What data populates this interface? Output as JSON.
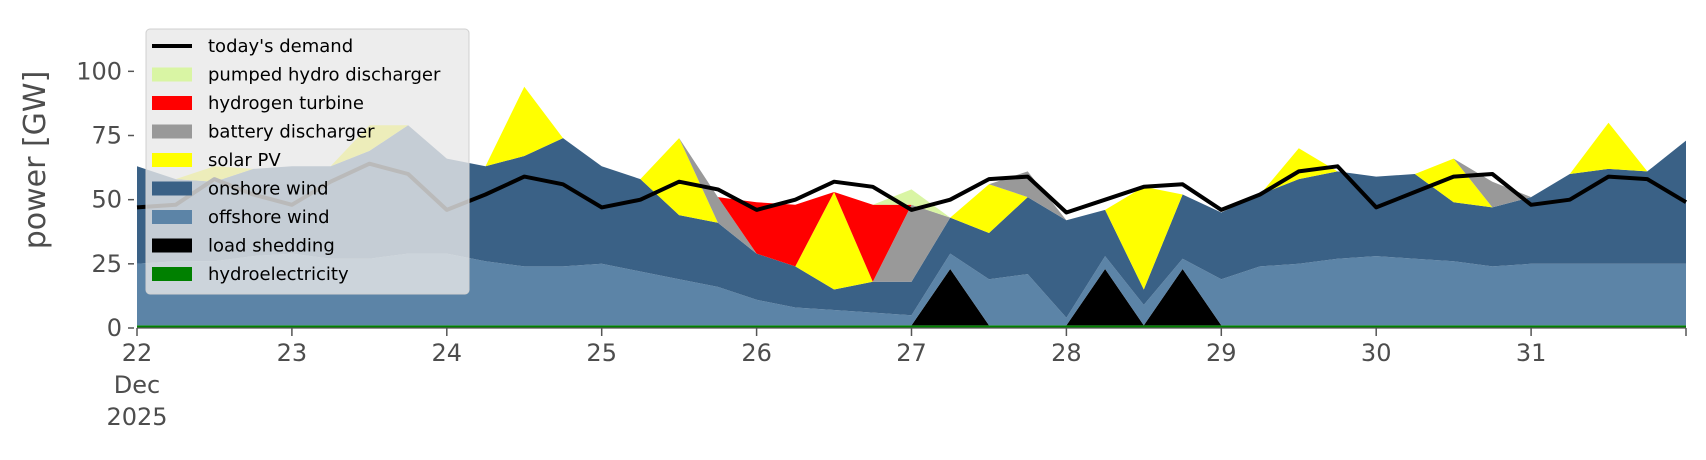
{
  "chart_data": {
    "type": "area",
    "title": "",
    "ylabel": "power [GW]",
    "ylim": [
      0,
      120
    ],
    "xlim": [
      22,
      32
    ],
    "yticks": [
      0,
      25,
      50,
      75,
      100
    ],
    "xticks": [
      {
        "value": 22,
        "lines": [
          "22",
          "Dec",
          "2025"
        ]
      },
      {
        "value": 23,
        "lines": [
          "23"
        ]
      },
      {
        "value": 24,
        "lines": [
          "24"
        ]
      },
      {
        "value": 25,
        "lines": [
          "25"
        ]
      },
      {
        "value": 26,
        "lines": [
          "26"
        ]
      },
      {
        "value": 27,
        "lines": [
          "27"
        ]
      },
      {
        "value": 28,
        "lines": [
          "28"
        ]
      },
      {
        "value": 29,
        "lines": [
          "29"
        ]
      },
      {
        "value": 30,
        "lines": [
          "30"
        ]
      },
      {
        "value": 31,
        "lines": [
          "31"
        ]
      }
    ],
    "grid": false,
    "legend_position": "top-left",
    "legend": [
      {
        "label": "today's demand",
        "kind": "line",
        "color": "#000000"
      },
      {
        "label": "pumped hydro discharger",
        "kind": "patch",
        "color": "#d9f5a4"
      },
      {
        "label": "hydrogen turbine",
        "kind": "patch",
        "color": "#ff0000"
      },
      {
        "label": "battery discharger",
        "kind": "patch",
        "color": "#999999"
      },
      {
        "label": "solar PV",
        "kind": "patch",
        "color": "#ffff00"
      },
      {
        "label": "onshore wind",
        "kind": "patch",
        "color": "#3a6186"
      },
      {
        "label": "offshore wind",
        "kind": "patch",
        "color": "#5c84a7"
      },
      {
        "label": "load shedding",
        "kind": "patch",
        "color": "#000000"
      },
      {
        "label": "hydroelectricity",
        "kind": "patch",
        "color": "#008000"
      }
    ],
    "x": [
      22.0,
      22.25,
      22.5,
      22.75,
      23.0,
      23.25,
      23.5,
      23.75,
      24.0,
      24.25,
      24.5,
      24.75,
      25.0,
      25.25,
      25.5,
      25.75,
      26.0,
      26.25,
      26.5,
      26.75,
      27.0,
      27.25,
      27.5,
      27.75,
      28.0,
      28.25,
      28.5,
      28.75,
      29.0,
      29.25,
      29.5,
      29.75,
      30.0,
      30.25,
      30.5,
      30.75,
      31.0,
      31.25,
      31.5,
      31.75,
      32.0
    ],
    "series": [
      {
        "name": "hydroelectricity",
        "color": "#008000",
        "values": [
          1,
          1,
          1,
          1,
          1,
          1,
          1,
          1,
          1,
          1,
          1,
          1,
          1,
          1,
          1,
          1,
          1,
          1,
          1,
          1,
          1,
          1,
          1,
          1,
          1,
          1,
          1,
          1,
          1,
          1,
          1,
          1,
          1,
          1,
          1,
          1,
          1,
          1,
          1,
          1,
          1
        ]
      },
      {
        "name": "load shedding",
        "color": "#000000",
        "values": [
          0,
          0,
          0,
          0,
          0,
          0,
          0,
          0,
          0,
          0,
          0,
          0,
          0,
          0,
          0,
          0,
          0,
          0,
          0,
          0,
          0,
          22,
          0,
          0,
          0,
          22,
          0,
          22,
          0,
          0,
          0,
          0,
          0,
          0,
          0,
          0,
          0,
          0,
          0,
          0,
          0
        ]
      },
      {
        "name": "offshore wind",
        "color": "#5c84a7",
        "values": [
          24,
          25,
          25,
          27,
          28,
          26,
          26,
          28,
          28,
          25,
          23,
          23,
          24,
          21,
          18,
          15,
          10,
          7,
          6,
          5,
          4,
          6,
          18,
          20,
          3,
          5,
          8,
          4,
          18,
          23,
          24,
          26,
          27,
          26,
          25,
          23,
          24,
          24,
          24,
          24,
          24
        ]
      },
      {
        "name": "onshore wind",
        "color": "#3a6186",
        "values": [
          38,
          32,
          31,
          34,
          34,
          36,
          42,
          50,
          37,
          37,
          43,
          50,
          38,
          36,
          25,
          25,
          18,
          16,
          8,
          12,
          13,
          14,
          18,
          30,
          38,
          18,
          6,
          25,
          26,
          28,
          33,
          34,
          31,
          33,
          23,
          23,
          26,
          35,
          37,
          36,
          48
        ]
      },
      {
        "name": "solar PV",
        "color": "#ffff00",
        "values": [
          0,
          0,
          6,
          0,
          0,
          0,
          10,
          0,
          0,
          0,
          27,
          0,
          0,
          0,
          30,
          0,
          0,
          0,
          38,
          0,
          0,
          0,
          19,
          0,
          0,
          0,
          40,
          0,
          0,
          0,
          12,
          0,
          0,
          0,
          17,
          0,
          0,
          0,
          18,
          0,
          0
        ]
      },
      {
        "name": "battery discharger",
        "color": "#999999",
        "values": [
          0,
          0,
          0,
          0,
          0,
          0,
          0,
          0,
          0,
          0,
          0,
          0,
          0,
          0,
          0,
          10,
          0,
          0,
          0,
          0,
          30,
          0,
          0,
          10,
          0,
          0,
          0,
          0,
          0,
          0,
          0,
          0,
          0,
          0,
          0,
          10,
          0,
          0,
          0,
          0,
          0
        ]
      },
      {
        "name": "hydrogen turbine",
        "color": "#ff0000",
        "values": [
          0,
          0,
          0,
          0,
          0,
          0,
          0,
          0,
          0,
          0,
          0,
          0,
          0,
          0,
          0,
          0,
          20,
          24,
          0,
          30,
          0,
          0,
          0,
          0,
          0,
          0,
          0,
          0,
          0,
          0,
          0,
          0,
          0,
          0,
          0,
          0,
          0,
          0,
          0,
          0,
          0
        ]
      },
      {
        "name": "pumped hydro discharger",
        "color": "#d9f5a4",
        "values": [
          0,
          0,
          0,
          0,
          0,
          0,
          0,
          0,
          0,
          0,
          0,
          0,
          0,
          0,
          0,
          0,
          0,
          0,
          0,
          0,
          6,
          0,
          0,
          0,
          0,
          0,
          0,
          0,
          0,
          0,
          0,
          0,
          0,
          0,
          0,
          0,
          0,
          0,
          0,
          0,
          0
        ]
      }
    ],
    "demand": {
      "name": "today's demand",
      "color": "#000000",
      "values": [
        47,
        48,
        58,
        52,
        48,
        57,
        64,
        60,
        46,
        52,
        59,
        56,
        47,
        50,
        57,
        54,
        46,
        50,
        57,
        55,
        46,
        50,
        58,
        59,
        45,
        50,
        55,
        56,
        46,
        52,
        61,
        63,
        47,
        53,
        59,
        60,
        48,
        50,
        59,
        58,
        49
      ]
    }
  }
}
